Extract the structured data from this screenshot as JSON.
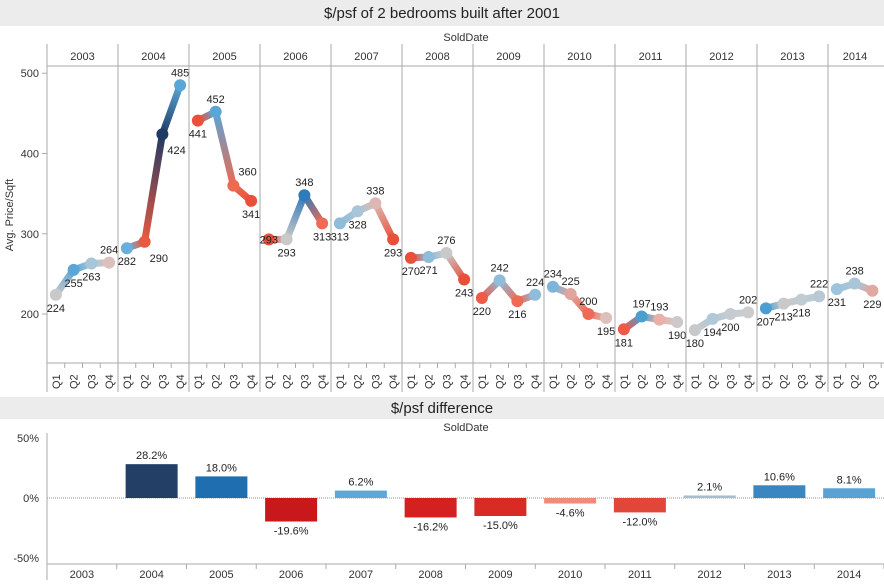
{
  "chart_data": [
    {
      "type": "line",
      "title": "$/psf of 2 bedrooms built after 2001",
      "column_header": "SoldDate",
      "ylabel": "Avg. Price/Sqft",
      "yticks": [
        500,
        400,
        300,
        200
      ],
      "ylim": [
        139,
        509
      ],
      "grid": false,
      "years": [
        {
          "year": "2003",
          "quarters": [
            "Q1",
            "Q2",
            "Q3",
            "Q4"
          ],
          "values": [
            224,
            255,
            263,
            264
          ],
          "colors": [
            "#c9c9c9",
            "#5aa6d6",
            "#a9c6d9",
            "#dcc0bb"
          ]
        },
        {
          "year": "2004",
          "quarters": [
            "Q1",
            "Q2",
            "Q3",
            "Q4"
          ],
          "values": [
            282,
            290,
            424,
            485
          ],
          "colors": [
            "#6aaedb",
            "#ea5a40",
            "#1f3a64",
            "#5aa6d6"
          ]
        },
        {
          "year": "2005",
          "quarters": [
            "Q1",
            "Q2",
            "Q3",
            "Q4"
          ],
          "values": [
            441,
            452,
            360,
            341
          ],
          "colors": [
            "#e8503a",
            "#5aa6d6",
            "#ec6a50",
            "#e8503a"
          ]
        },
        {
          "year": "2006",
          "quarters": [
            "Q1",
            "Q2",
            "Q3",
            "Q4"
          ],
          "values": [
            293,
            293,
            348,
            313
          ],
          "colors": [
            "#e8503a",
            "#c9c9c9",
            "#2f7ab8",
            "#ee6a55"
          ]
        },
        {
          "year": "2007",
          "quarters": [
            "Q1",
            "Q2",
            "Q3",
            "Q4"
          ],
          "values": [
            313,
            328,
            338,
            293
          ],
          "colors": [
            "#8fbcd8",
            "#a9c6d9",
            "#dcb8b2",
            "#e8503a"
          ]
        },
        {
          "year": "2008",
          "quarters": [
            "Q1",
            "Q2",
            "Q3",
            "Q4"
          ],
          "values": [
            270,
            271,
            276,
            243
          ],
          "colors": [
            "#e8503a",
            "#8fbcd8",
            "#c9c9c9",
            "#e8503a"
          ]
        },
        {
          "year": "2009",
          "quarters": [
            "Q1",
            "Q2",
            "Q3",
            "Q4"
          ],
          "values": [
            220,
            242,
            216,
            224
          ],
          "colors": [
            "#ee5a45",
            "#8fbcd8",
            "#ee6a55",
            "#8fbcd8"
          ]
        },
        {
          "year": "2010",
          "quarters": [
            "Q1",
            "Q2",
            "Q3",
            "Q4"
          ],
          "values": [
            234,
            225,
            200,
            195
          ],
          "colors": [
            "#7db4d8",
            "#e0a59c",
            "#ee6a55",
            "#dcc0bb"
          ]
        },
        {
          "year": "2011",
          "quarters": [
            "Q1",
            "Q2",
            "Q3",
            "Q4"
          ],
          "values": [
            181,
            197,
            193,
            190
          ],
          "colors": [
            "#ee5a45",
            "#4a9fd0",
            "#e8b0a6",
            "#d0c8c8"
          ]
        },
        {
          "year": "2012",
          "quarters": [
            "Q1",
            "Q2",
            "Q3",
            "Q4"
          ],
          "values": [
            180,
            194,
            200,
            202
          ],
          "colors": [
            "#c9c9c9",
            "#b0c8d8",
            "#c4ccd2",
            "#cccccc"
          ]
        },
        {
          "year": "2013",
          "quarters": [
            "Q1",
            "Q2",
            "Q3",
            "Q4"
          ],
          "values": [
            207,
            213,
            218,
            222
          ],
          "colors": [
            "#4a9fd0",
            "#c9c9c9",
            "#c0ccd4",
            "#b8c8d4"
          ]
        },
        {
          "year": "2014",
          "quarters": [
            "Q1",
            "Q2",
            "Q3"
          ],
          "values": [
            231,
            238,
            229
          ],
          "colors": [
            "#9ec4dc",
            "#a9c6d9",
            "#e0a8a0"
          ]
        }
      ]
    },
    {
      "type": "bar",
      "title": "$/psf difference",
      "column_header": "SoldDate",
      "yticks": [
        "50%",
        "0%",
        "-50%"
      ],
      "ylim": [
        -50,
        50
      ],
      "categories": [
        "2003",
        "2004",
        "2005",
        "2006",
        "2007",
        "2008",
        "2009",
        "2010",
        "2011",
        "2012",
        "2013",
        "2014"
      ],
      "values": [
        null,
        28.2,
        18.0,
        -19.6,
        6.2,
        -16.2,
        -15.0,
        -4.6,
        -12.0,
        2.1,
        10.6,
        8.1
      ],
      "labels": [
        "",
        "28.2%",
        "18.0%",
        "-19.6%",
        "6.2%",
        "-16.2%",
        "-15.0%",
        "-4.6%",
        "-12.0%",
        "2.1%",
        "10.6%",
        "8.1%"
      ],
      "colors": [
        "#cccccc",
        "#243f66",
        "#1f6fb0",
        "#c8181c",
        "#5ea7d6",
        "#d42020",
        "#d92a25",
        "#f08a7a",
        "#e0463a",
        "#a8bccb",
        "#3a86c0",
        "#5aa2d3"
      ]
    }
  ]
}
